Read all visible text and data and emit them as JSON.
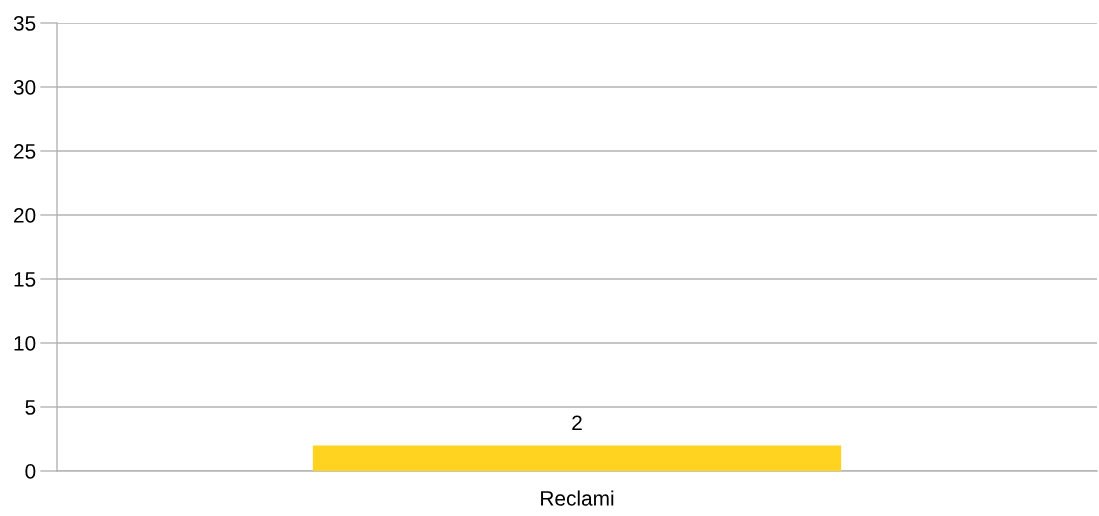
{
  "chart_data": {
    "type": "bar",
    "categories": [
      "Reclami"
    ],
    "values": [
      2
    ],
    "color": "#ffd320",
    "ylim": [
      0,
      35
    ],
    "yticks": [
      0,
      5,
      10,
      15,
      20,
      25,
      30,
      35
    ],
    "grid": "y",
    "data_labels": true
  }
}
